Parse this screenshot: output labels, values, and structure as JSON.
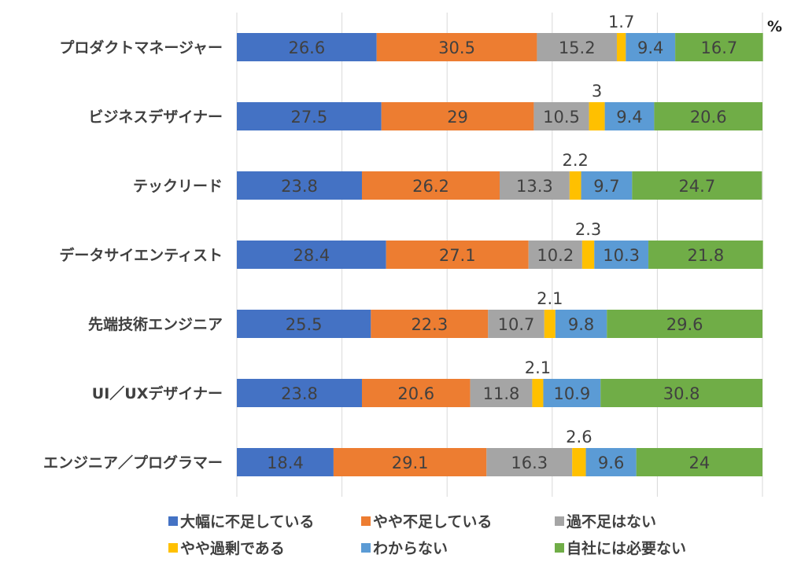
{
  "chart_data": {
    "type": "bar",
    "orientation": "horizontal",
    "stacked": true,
    "percent_stacked": true,
    "title": "",
    "xlabel": "",
    "ylabel": "",
    "unit": "%",
    "xlim": [
      0,
      100
    ],
    "grid": true,
    "legend_position": "bottom",
    "categories": [
      "プロダクトマネージャー",
      "ビジネスデザイナー",
      "テックリード",
      "データサイエンティスト",
      "先端技術エンジニア",
      "UI／UXデザイナー",
      "エンジニア／プログラマー"
    ],
    "series": [
      {
        "name": "大幅に不足している",
        "color": "#4472C4",
        "values": [
          26.6,
          27.5,
          23.8,
          28.4,
          25.5,
          23.8,
          18.4
        ]
      },
      {
        "name": "やや不足している",
        "color": "#ED7D31",
        "values": [
          30.5,
          29,
          26.2,
          27.1,
          22.3,
          20.6,
          29.1
        ]
      },
      {
        "name": "過不足はない",
        "color": "#A5A5A5",
        "values": [
          15.2,
          10.5,
          13.3,
          10.2,
          10.7,
          11.8,
          16.3
        ]
      },
      {
        "name": "やや過剰である",
        "color": "#FFC000",
        "values": [
          1.7,
          3,
          2.2,
          2.3,
          2.1,
          2.1,
          2.6
        ]
      },
      {
        "name": "わからない",
        "color": "#5B9BD5",
        "values": [
          9.4,
          9.4,
          9.7,
          10.3,
          9.8,
          10.9,
          9.6
        ]
      },
      {
        "name": "自社には必要ない",
        "color": "#70AD47",
        "values": [
          16.7,
          20.6,
          24.7,
          21.8,
          29.6,
          30.8,
          24
        ]
      }
    ]
  }
}
